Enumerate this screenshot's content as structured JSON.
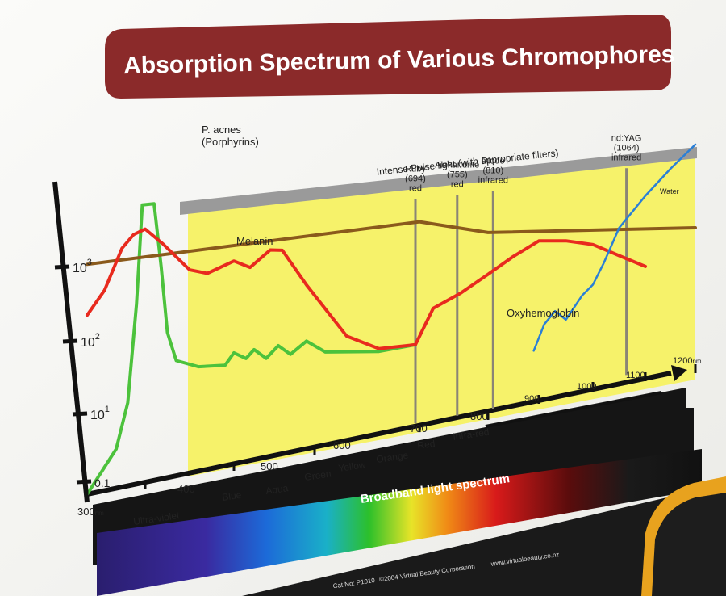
{
  "chart_data": {
    "type": "line",
    "title": "Absorption Spectrum of Various Chromophores",
    "xlabel": "",
    "ylabel": "",
    "x_unit": "nm",
    "x_ticks": [
      "300",
      "400",
      "500",
      "600",
      "700",
      "800",
      "900",
      "1000",
      "1100",
      "1200"
    ],
    "y_ticks": [
      "0.1",
      "10",
      "10",
      "10"
    ],
    "y_tick_superscripts": [
      "",
      "1",
      "2",
      "3"
    ],
    "xlim": [
      300,
      1200
    ],
    "ylog": true,
    "spectrum_bands": [
      "Ultra-violet",
      "Blue",
      "Aqua",
      "Green",
      "Yellow",
      "Orange",
      "Red",
      "Infra-red"
    ],
    "spectrum_bar_label": "Broadband light spectrum",
    "ipl_band": {
      "label": "Intense Pulse light (with appropriate filters)",
      "range": [
        400,
        1200
      ]
    },
    "laser_lines": [
      {
        "name": "Ruby",
        "lines": [
          "Ruby",
          "(694)",
          "red"
        ],
        "x": 694
      },
      {
        "name": "Alexandrite",
        "lines": [
          "Alexandrite",
          "(755)",
          "red"
        ],
        "x": 755
      },
      {
        "name": "Diode",
        "lines": [
          "Diode",
          "(810)",
          "infrared"
        ],
        "x": 810
      },
      {
        "name": "nd:YAG",
        "lines": [
          "nd:YAG",
          "(1064)",
          "infrared"
        ],
        "x": 1064
      }
    ],
    "series": [
      {
        "name": "P. acnes",
        "label_lines": [
          "P. acnes",
          "(Porphyrins)"
        ],
        "color": "#4cc23c",
        "points": [
          [
            300,
            0.1
          ],
          [
            350,
            0.5
          ],
          [
            370,
            3
          ],
          [
            385,
            150
          ],
          [
            395,
            8000
          ],
          [
            410,
            8000
          ],
          [
            418,
            600
          ],
          [
            425,
            40
          ],
          [
            435,
            12
          ],
          [
            460,
            8
          ],
          [
            490,
            7
          ],
          [
            500,
            11
          ],
          [
            515,
            8
          ],
          [
            525,
            11
          ],
          [
            540,
            7
          ],
          [
            555,
            11
          ],
          [
            570,
            7
          ],
          [
            590,
            11
          ],
          [
            610,
            6
          ],
          [
            660,
            4
          ],
          [
            694,
            4
          ]
        ]
      },
      {
        "name": "Melanin",
        "label_lines": [
          "Melanin"
        ],
        "color": "#8a5a1c",
        "points": [
          [
            300,
            900
          ],
          [
            700,
            900
          ],
          [
            800,
            400
          ],
          [
            1200,
            100
          ]
        ]
      },
      {
        "name": "Oxyhemoglobin",
        "label_lines": [
          "Oxyhemoglobin"
        ],
        "color": "#e82a1e",
        "points": [
          [
            300,
            120
          ],
          [
            330,
            300
          ],
          [
            360,
            1500
          ],
          [
            380,
            2500
          ],
          [
            400,
            3000
          ],
          [
            420,
            1500
          ],
          [
            450,
            450
          ],
          [
            470,
            350
          ],
          [
            500,
            500
          ],
          [
            520,
            350
          ],
          [
            545,
            650
          ],
          [
            560,
            600
          ],
          [
            590,
            120
          ],
          [
            630,
            10
          ],
          [
            660,
            4.5
          ],
          [
            694,
            4
          ],
          [
            720,
            18
          ],
          [
            760,
            30
          ],
          [
            800,
            60
          ],
          [
            850,
            100
          ],
          [
            900,
            150
          ],
          [
            950,
            120
          ],
          [
            1000,
            80
          ],
          [
            1050,
            40
          ],
          [
            1100,
            20
          ]
        ]
      },
      {
        "name": "Water",
        "label_lines": [
          "Water"
        ],
        "color": "#2a7fd6",
        "points": [
          [
            890,
            1
          ],
          [
            910,
            3
          ],
          [
            930,
            5
          ],
          [
            950,
            3
          ],
          [
            980,
            8
          ],
          [
            1000,
            12
          ],
          [
            1020,
            30
          ],
          [
            1050,
            150
          ],
          [
            1100,
            600
          ],
          [
            1150,
            2000
          ],
          [
            1200,
            6000
          ]
        ]
      }
    ],
    "grid": false,
    "legend": "inline labels"
  },
  "footer": {
    "cat": "Cat No: P1010",
    "copyright": "©2004 Virtual Beauty Corporation",
    "website": "www.virtualbeauty.co.nz"
  },
  "colors": {
    "title_banner": "#8b2a2a",
    "ipl_yellow": "#f6f26a",
    "ipl_bar": "#9a9a9a",
    "black_bar": "#111111",
    "case_orange": "#e8a21e"
  }
}
